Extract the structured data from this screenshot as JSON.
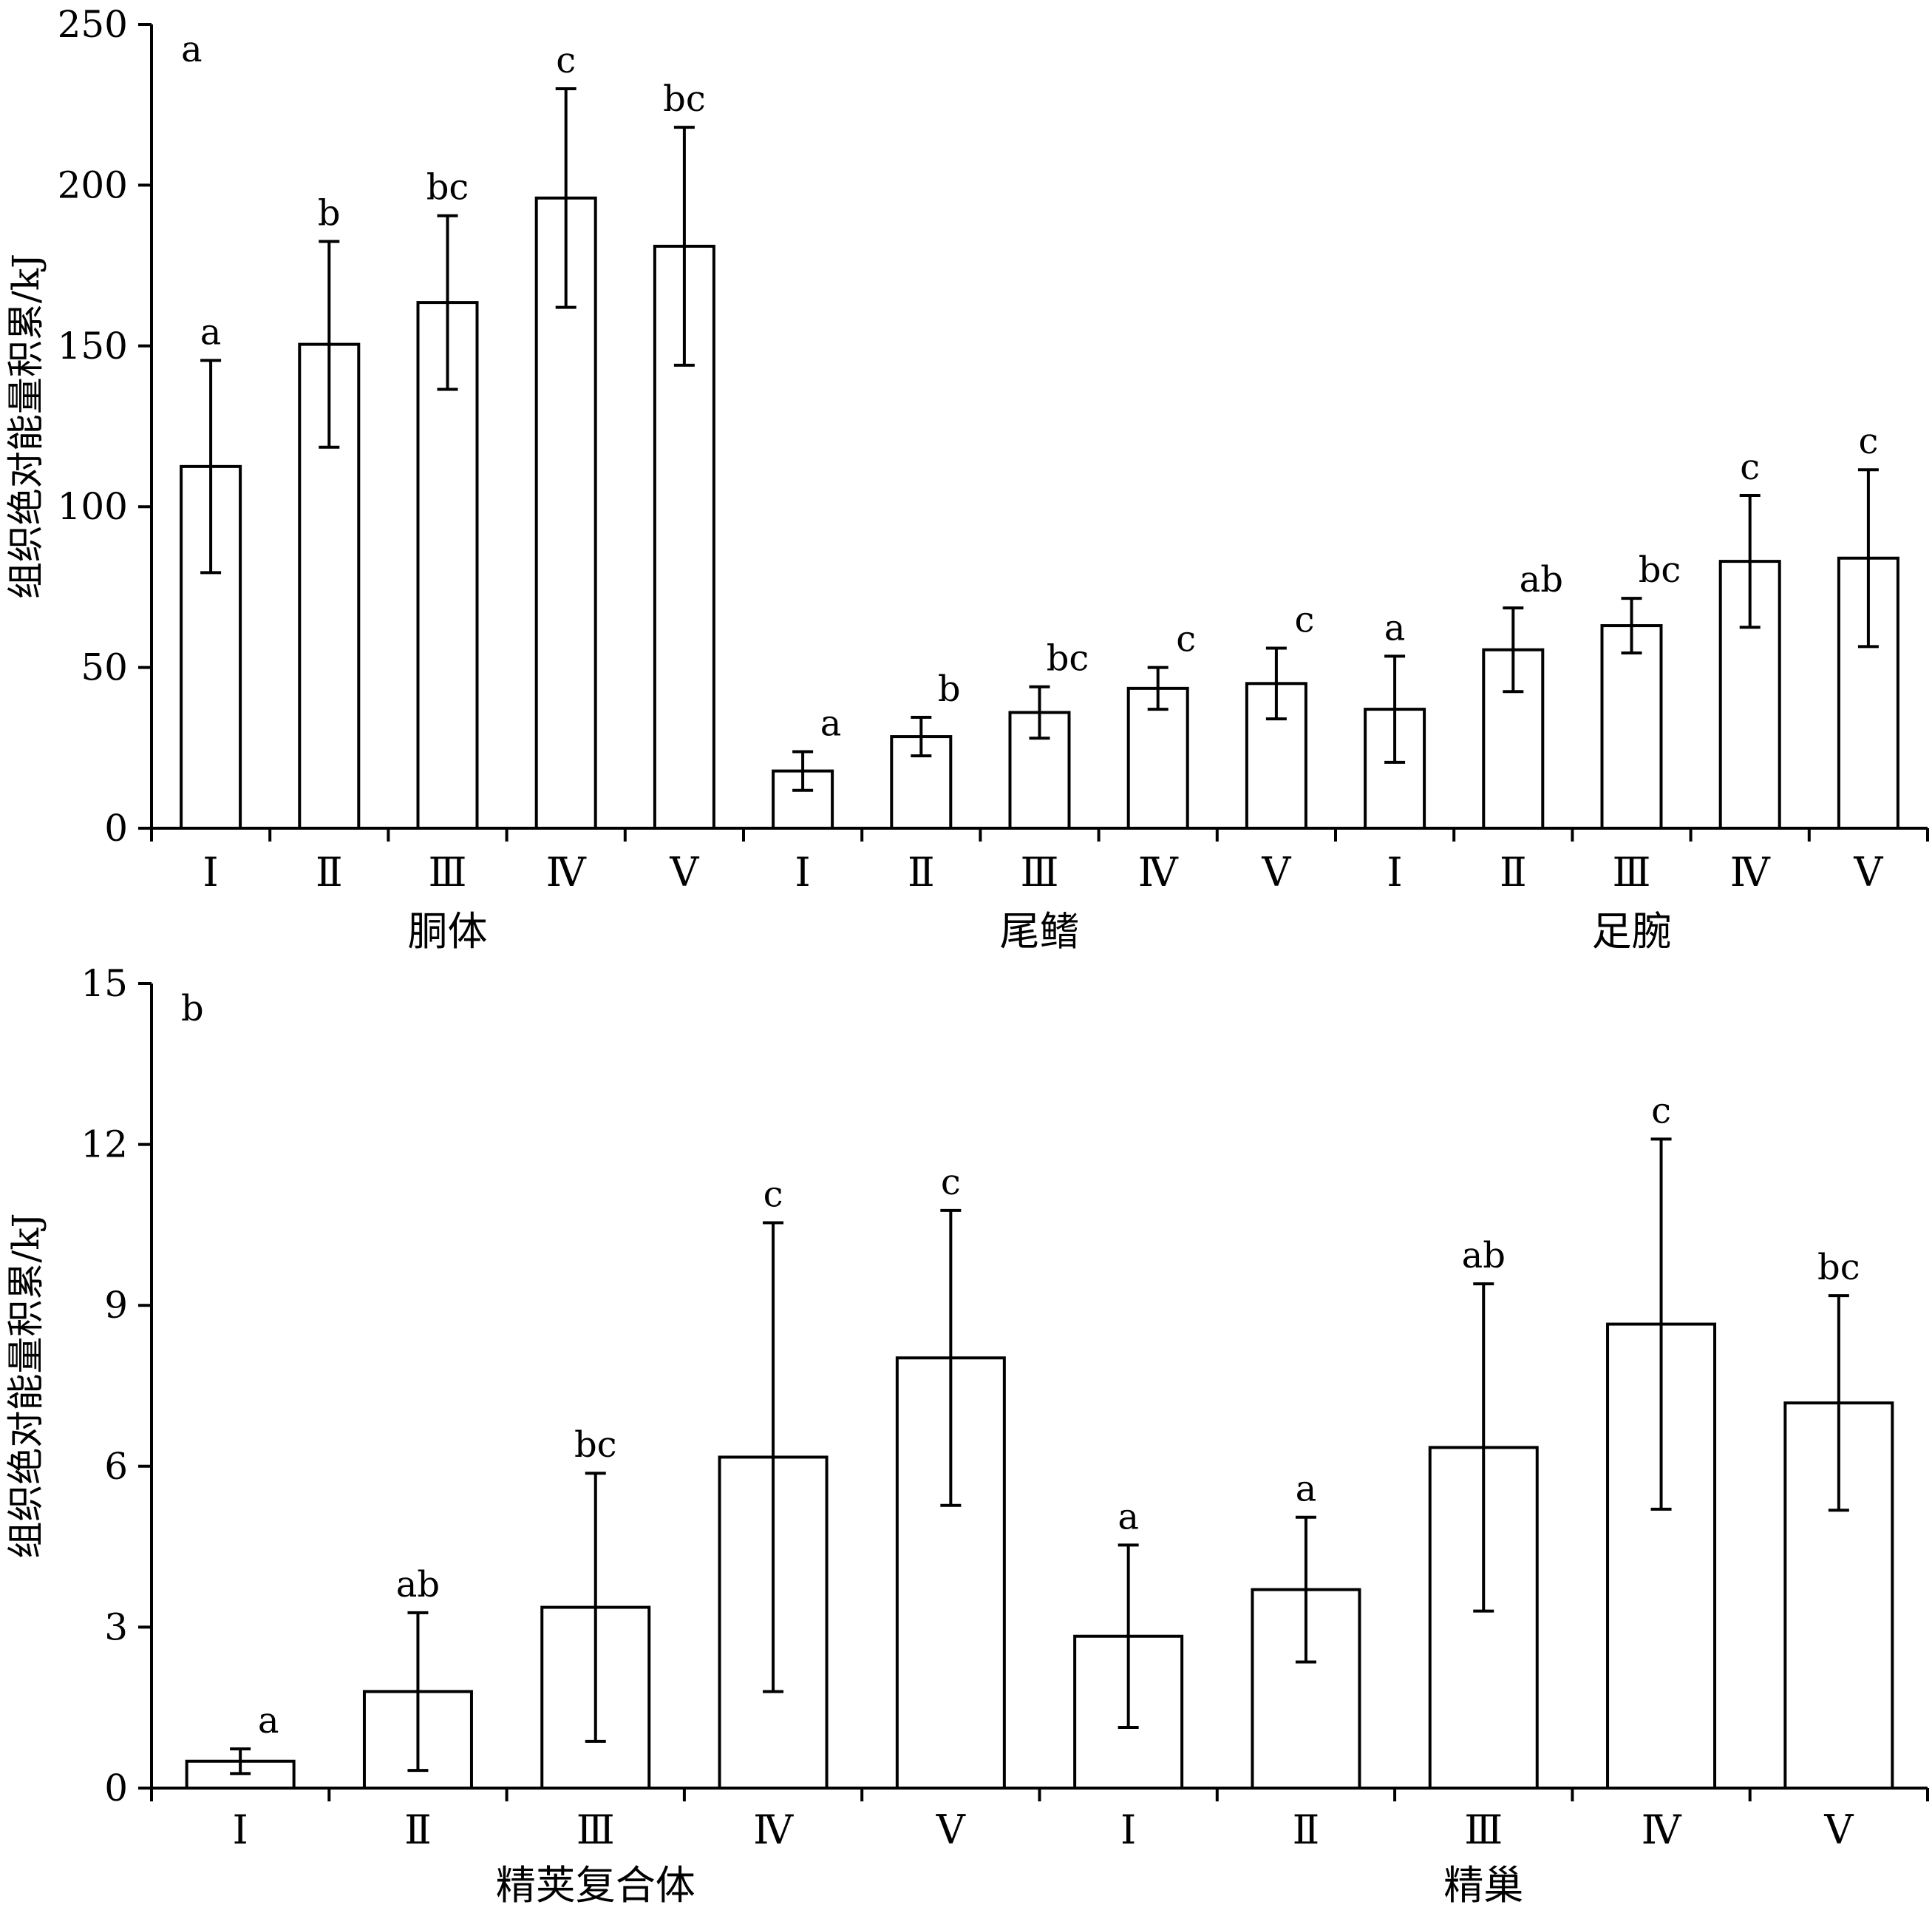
{
  "chart_data": [
    {
      "type": "bar",
      "panel_label": "a",
      "ylabel": "组织绝对能量积累/kJ",
      "ylim": [
        0,
        250
      ],
      "yticks": [
        "0",
        "50",
        "100",
        "150",
        "200",
        "250"
      ],
      "categories": [
        "Ⅰ",
        "Ⅱ",
        "Ⅲ",
        "Ⅳ",
        "Ⅴ",
        "Ⅰ",
        "Ⅱ",
        "Ⅲ",
        "Ⅳ",
        "Ⅴ",
        "Ⅰ",
        "Ⅱ",
        "Ⅲ",
        "Ⅳ",
        "Ⅴ"
      ],
      "groups": [
        {
          "name": "胴体",
          "start": 0,
          "count": 5
        },
        {
          "name": "尾鳍",
          "start": 5,
          "count": 5
        },
        {
          "name": "足腕",
          "start": 10,
          "count": 5
        }
      ],
      "values": [
        112.5,
        150.5,
        163.5,
        196,
        181,
        17.8,
        28.5,
        36,
        43.5,
        45,
        37,
        55.5,
        63,
        83,
        84
      ],
      "errors": [
        33,
        32,
        27,
        34,
        37,
        6,
        6,
        8,
        6.5,
        11,
        16.5,
        13,
        8.5,
        20.5,
        27.5
      ],
      "letters": [
        "a",
        "b",
        "bc",
        "c",
        "bc",
        "a",
        "b",
        "bc",
        "c",
        "c",
        "a",
        "ab",
        "bc",
        "c",
        "c"
      ]
    },
    {
      "type": "bar",
      "panel_label": "b",
      "ylabel": "组织绝对能量积累/kJ",
      "ylim": [
        0,
        15
      ],
      "yticks": [
        "0",
        "3",
        "6",
        "9",
        "12",
        "15"
      ],
      "categories": [
        "Ⅰ",
        "Ⅱ",
        "Ⅲ",
        "Ⅳ",
        "Ⅴ",
        "Ⅰ",
        "Ⅱ",
        "Ⅲ",
        "Ⅳ",
        "Ⅴ"
      ],
      "groups": [
        {
          "name": "精荚复合体",
          "start": 0,
          "count": 5
        },
        {
          "name": "精巢",
          "start": 5,
          "count": 5
        }
      ],
      "values": [
        0.5,
        1.8,
        3.37,
        6.17,
        8.02,
        2.83,
        3.7,
        6.35,
        8.65,
        7.18
      ],
      "errors": [
        0.23,
        1.47,
        2.5,
        4.37,
        2.75,
        1.7,
        1.35,
        3.05,
        3.45,
        2.0
      ],
      "letters": [
        "a",
        "ab",
        "bc",
        "c",
        "c",
        "a",
        "a",
        "ab",
        "c",
        "bc"
      ]
    }
  ]
}
